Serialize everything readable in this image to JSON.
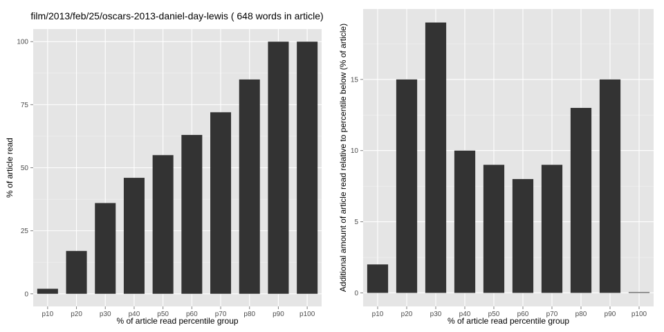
{
  "colors": {
    "panel_background": "#e5e5e5",
    "grid_major": "#ffffff",
    "grid_minor": "#f2f2f2",
    "bar_fill": "#333333",
    "tick_text": "#4d4d4d",
    "text": "#000000"
  },
  "chart_data": [
    {
      "type": "bar",
      "title": "film/2013/feb/25/oscars-2013-daniel-day-lewis ( 648 words in article)",
      "xlabel": "% of article read percentile group",
      "ylabel": "% of article read",
      "categories": [
        "p10",
        "p20",
        "p30",
        "p40",
        "p50",
        "p60",
        "p70",
        "p80",
        "p90",
        "p100"
      ],
      "values": [
        2,
        17,
        36,
        46,
        55,
        63,
        72,
        85,
        100,
        100
      ],
      "ylim": [
        -5,
        105
      ],
      "yticks": [
        0,
        25,
        50,
        75,
        100
      ],
      "grid": true
    },
    {
      "type": "bar",
      "title": "",
      "xlabel": "% of article read percentile group",
      "ylabel": "Additional amount of article read relative to percentile below (% of article)",
      "categories": [
        "p10",
        "p20",
        "p30",
        "p40",
        "p50",
        "p60",
        "p70",
        "p80",
        "p90",
        "p100"
      ],
      "values": [
        2,
        15,
        19,
        10,
        9,
        8,
        9,
        13,
        15,
        0
      ],
      "ylim": [
        -0.95,
        19.95
      ],
      "yticks": [
        0,
        5,
        10,
        15
      ],
      "grid": true
    }
  ]
}
